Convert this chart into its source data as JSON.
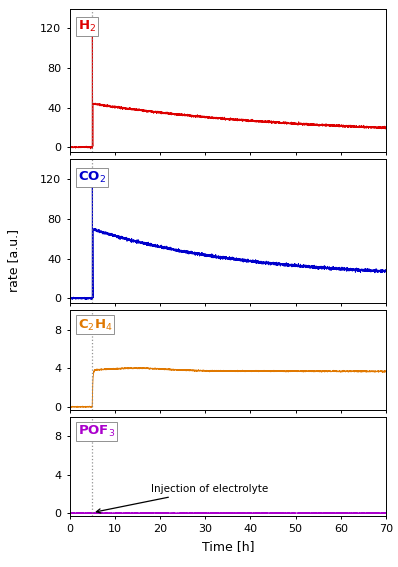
{
  "title": "",
  "xlabel": "Time [h]",
  "ylabel": "rate [a.u.]",
  "xlim": [
    0,
    70
  ],
  "xticks": [
    0,
    10,
    20,
    30,
    40,
    50,
    60,
    70
  ],
  "injection_x": 5.0,
  "subplots": [
    {
      "label": "H$_2$",
      "label_color": "#dd0000",
      "ylim": [
        -5,
        140
      ],
      "yticks": [
        0,
        40,
        80,
        120
      ],
      "color": "#dd0000",
      "plateau_y": 44,
      "end_y": 12,
      "spike_height": 130,
      "decay_fast": 6.0,
      "decay_slow": 0.022
    },
    {
      "label": "CO$_2$",
      "label_color": "#0000cc",
      "ylim": [
        -5,
        140
      ],
      "yticks": [
        0,
        40,
        80,
        120
      ],
      "color": "#0000cc",
      "plateau_y": 70,
      "end_y": 20,
      "spike_height": 115,
      "decay_fast": 5.0,
      "decay_slow": 0.03
    },
    {
      "label": "C$_2$H$_4$",
      "label_color": "#e07800",
      "ylim": [
        -0.3,
        10
      ],
      "yticks": [
        0,
        4,
        8
      ],
      "color": "#e07800",
      "plateau_y": 3.75,
      "end_y": 3.52,
      "rise_rate": 8.0,
      "hump_decay": 0.012
    },
    {
      "label": "POF$_3$",
      "label_color": "#aa00cc",
      "ylim": [
        -0.3,
        10
      ],
      "yticks": [
        0,
        4,
        8
      ],
      "color": "#aa00cc",
      "plateau_y": 0,
      "end_y": 0
    }
  ]
}
